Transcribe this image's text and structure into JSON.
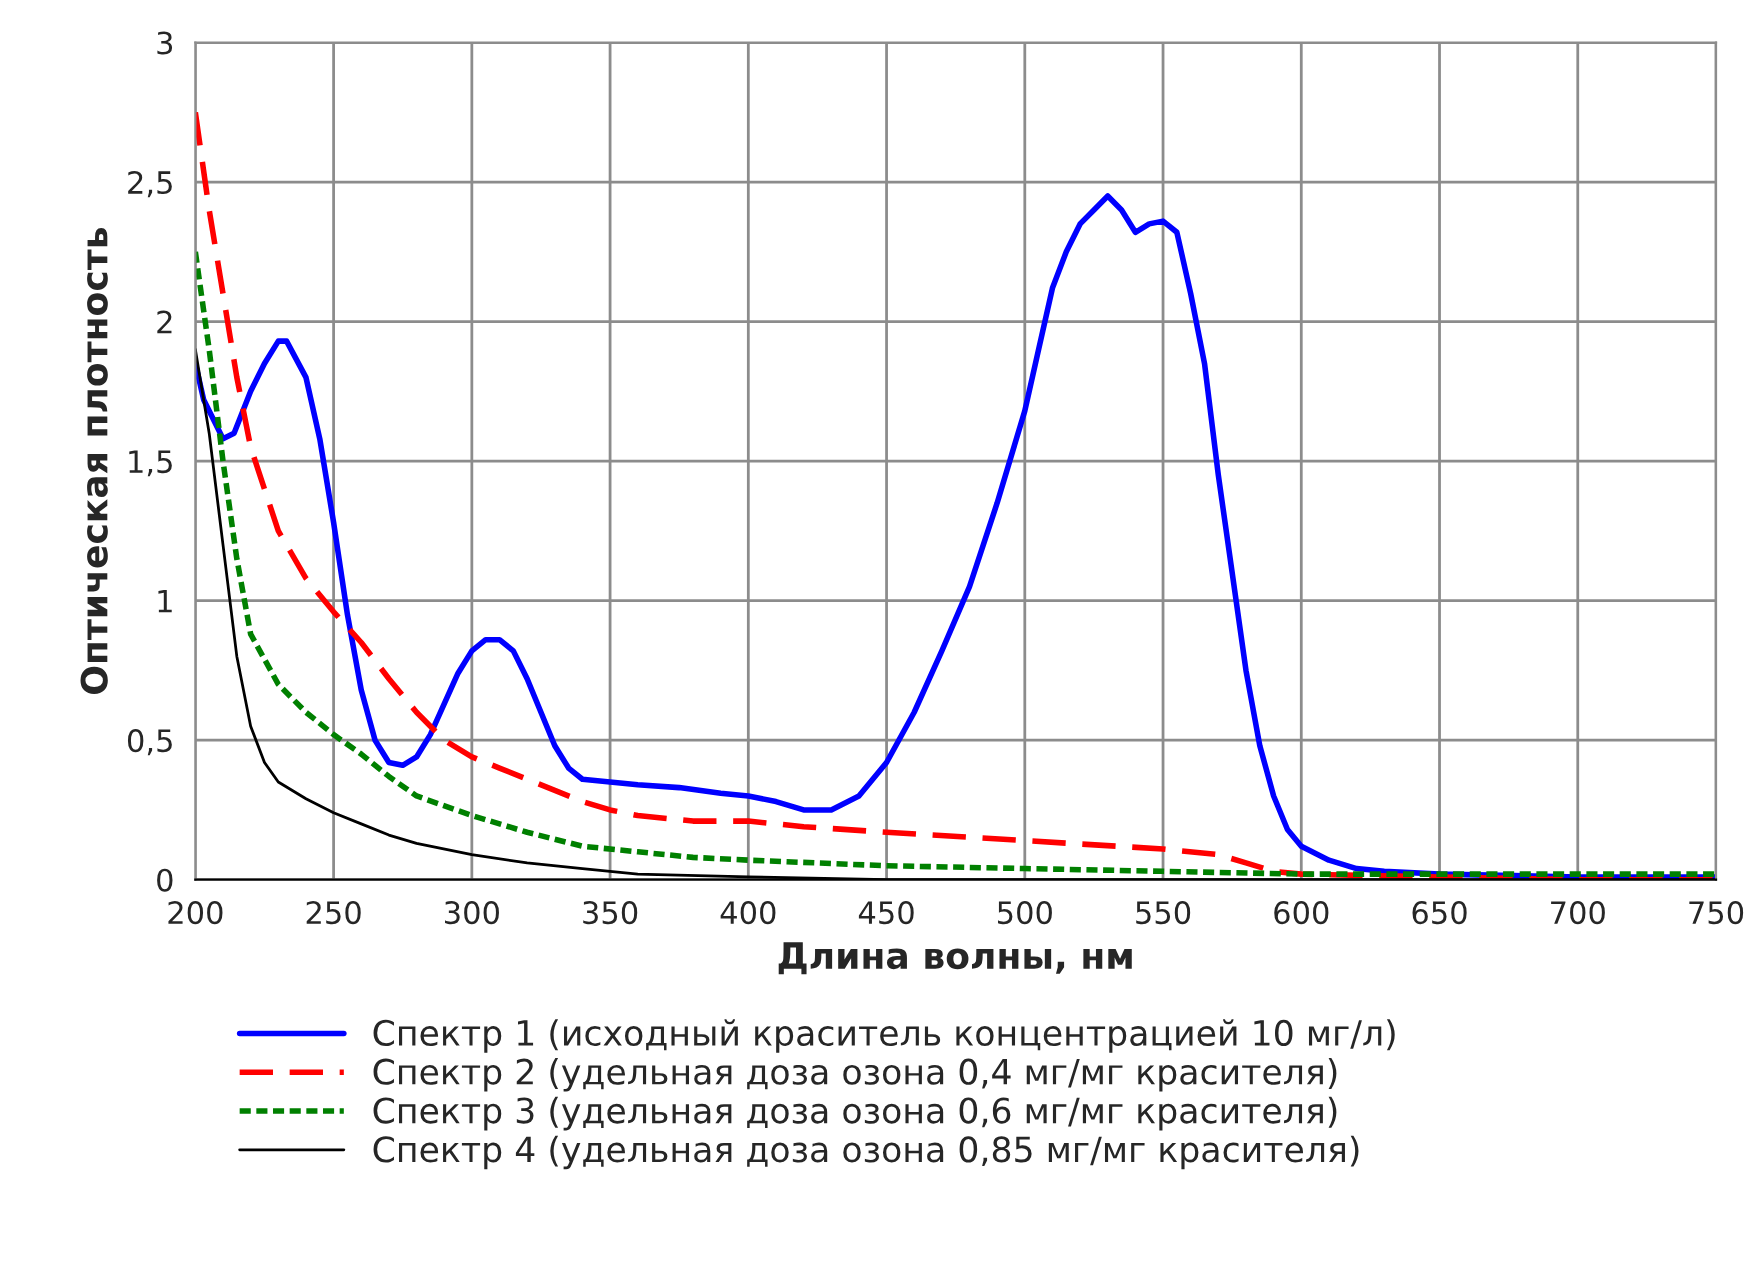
{
  "chart_data": {
    "type": "line",
    "xlabel": "Длина волны, нм",
    "ylabel": "Оптическая плотность",
    "xlim": [
      200,
      750
    ],
    "xticks": [
      200,
      250,
      300,
      350,
      400,
      450,
      500,
      550,
      600,
      650,
      700,
      750
    ],
    "ylim": [
      0,
      3
    ],
    "yticks": [
      0,
      {
        "value": 0.5,
        "label": "0,5"
      },
      1,
      {
        "value": 1.5,
        "label": "1,5"
      },
      2,
      {
        "value": 2.5,
        "label": "2,5"
      },
      3
    ],
    "grid": true,
    "legend": "bottom",
    "marker": "none",
    "series": [
      {
        "name": "Спектр 1 (исходный краситель концентрацией 10 мг/л)",
        "color": "#0000ff",
        "line_style": "solid",
        "x": [
          200,
          203,
          210,
          214,
          220,
          225,
          230,
          233,
          240,
          245,
          250,
          255,
          260,
          265,
          270,
          275,
          280,
          285,
          290,
          295,
          300,
          305,
          310,
          315,
          320,
          325,
          330,
          335,
          340,
          350,
          360,
          375,
          390,
          400,
          410,
          420,
          430,
          440,
          450,
          460,
          470,
          480,
          490,
          500,
          505,
          510,
          515,
          520,
          525,
          530,
          535,
          540,
          545,
          550,
          555,
          560,
          565,
          570,
          575,
          580,
          585,
          590,
          595,
          600,
          610,
          620,
          630,
          650,
          700,
          750
        ],
        "values": [
          1.85,
          1.72,
          1.58,
          1.6,
          1.75,
          1.85,
          1.93,
          1.93,
          1.8,
          1.58,
          1.28,
          0.95,
          0.68,
          0.5,
          0.42,
          0.41,
          0.44,
          0.52,
          0.63,
          0.74,
          0.82,
          0.86,
          0.86,
          0.82,
          0.72,
          0.6,
          0.48,
          0.4,
          0.36,
          0.35,
          0.34,
          0.33,
          0.31,
          0.3,
          0.28,
          0.25,
          0.25,
          0.3,
          0.42,
          0.6,
          0.82,
          1.05,
          1.35,
          1.68,
          1.9,
          2.12,
          2.25,
          2.35,
          2.4,
          2.45,
          2.4,
          2.32,
          2.35,
          2.36,
          2.32,
          2.1,
          1.85,
          1.45,
          1.1,
          0.75,
          0.48,
          0.3,
          0.18,
          0.12,
          0.07,
          0.04,
          0.03,
          0.02,
          0.01,
          0.01
        ]
      },
      {
        "name": "Спектр 2 (удельная доза озона 0,4 мг/мг красителя)",
        "color": "#ff0000",
        "line_style": "dashed",
        "x": [
          200,
          205,
          210,
          215,
          220,
          225,
          230,
          240,
          250,
          260,
          270,
          280,
          290,
          300,
          310,
          320,
          330,
          340,
          350,
          360,
          380,
          400,
          420,
          450,
          500,
          550,
          570,
          580,
          590,
          600,
          650,
          700,
          750
        ],
        "values": [
          2.75,
          2.4,
          2.1,
          1.8,
          1.55,
          1.4,
          1.25,
          1.08,
          0.96,
          0.85,
          0.72,
          0.6,
          0.5,
          0.44,
          0.4,
          0.36,
          0.32,
          0.28,
          0.25,
          0.23,
          0.21,
          0.21,
          0.19,
          0.17,
          0.14,
          0.11,
          0.09,
          0.06,
          0.03,
          0.02,
          0.01,
          0.0,
          0.0
        ]
      },
      {
        "name": "Спектр 3 (удельная доза озона 0,6 мг/мг красителя)",
        "color": "#008000",
        "line_style": "dotted",
        "x": [
          200,
          205,
          210,
          215,
          220,
          230,
          240,
          250,
          260,
          270,
          280,
          300,
          320,
          340,
          360,
          380,
          400,
          450,
          500,
          550,
          600,
          700,
          750
        ],
        "values": [
          2.25,
          1.9,
          1.5,
          1.15,
          0.88,
          0.7,
          0.6,
          0.52,
          0.45,
          0.37,
          0.3,
          0.23,
          0.17,
          0.12,
          0.1,
          0.08,
          0.07,
          0.05,
          0.04,
          0.03,
          0.02,
          0.02,
          0.02
        ]
      },
      {
        "name": "Спектр 4 (удельная доза озона 0,85 мг/мг красителя)",
        "color": "#000000",
        "line_style": "solid",
        "x": [
          200,
          205,
          210,
          215,
          220,
          225,
          230,
          240,
          250,
          260,
          270,
          280,
          300,
          320,
          340,
          360,
          400,
          450,
          750
        ],
        "values": [
          1.9,
          1.6,
          1.2,
          0.8,
          0.55,
          0.42,
          0.35,
          0.29,
          0.24,
          0.2,
          0.16,
          0.13,
          0.09,
          0.06,
          0.04,
          0.02,
          0.01,
          0.0,
          0.0
        ]
      }
    ]
  }
}
